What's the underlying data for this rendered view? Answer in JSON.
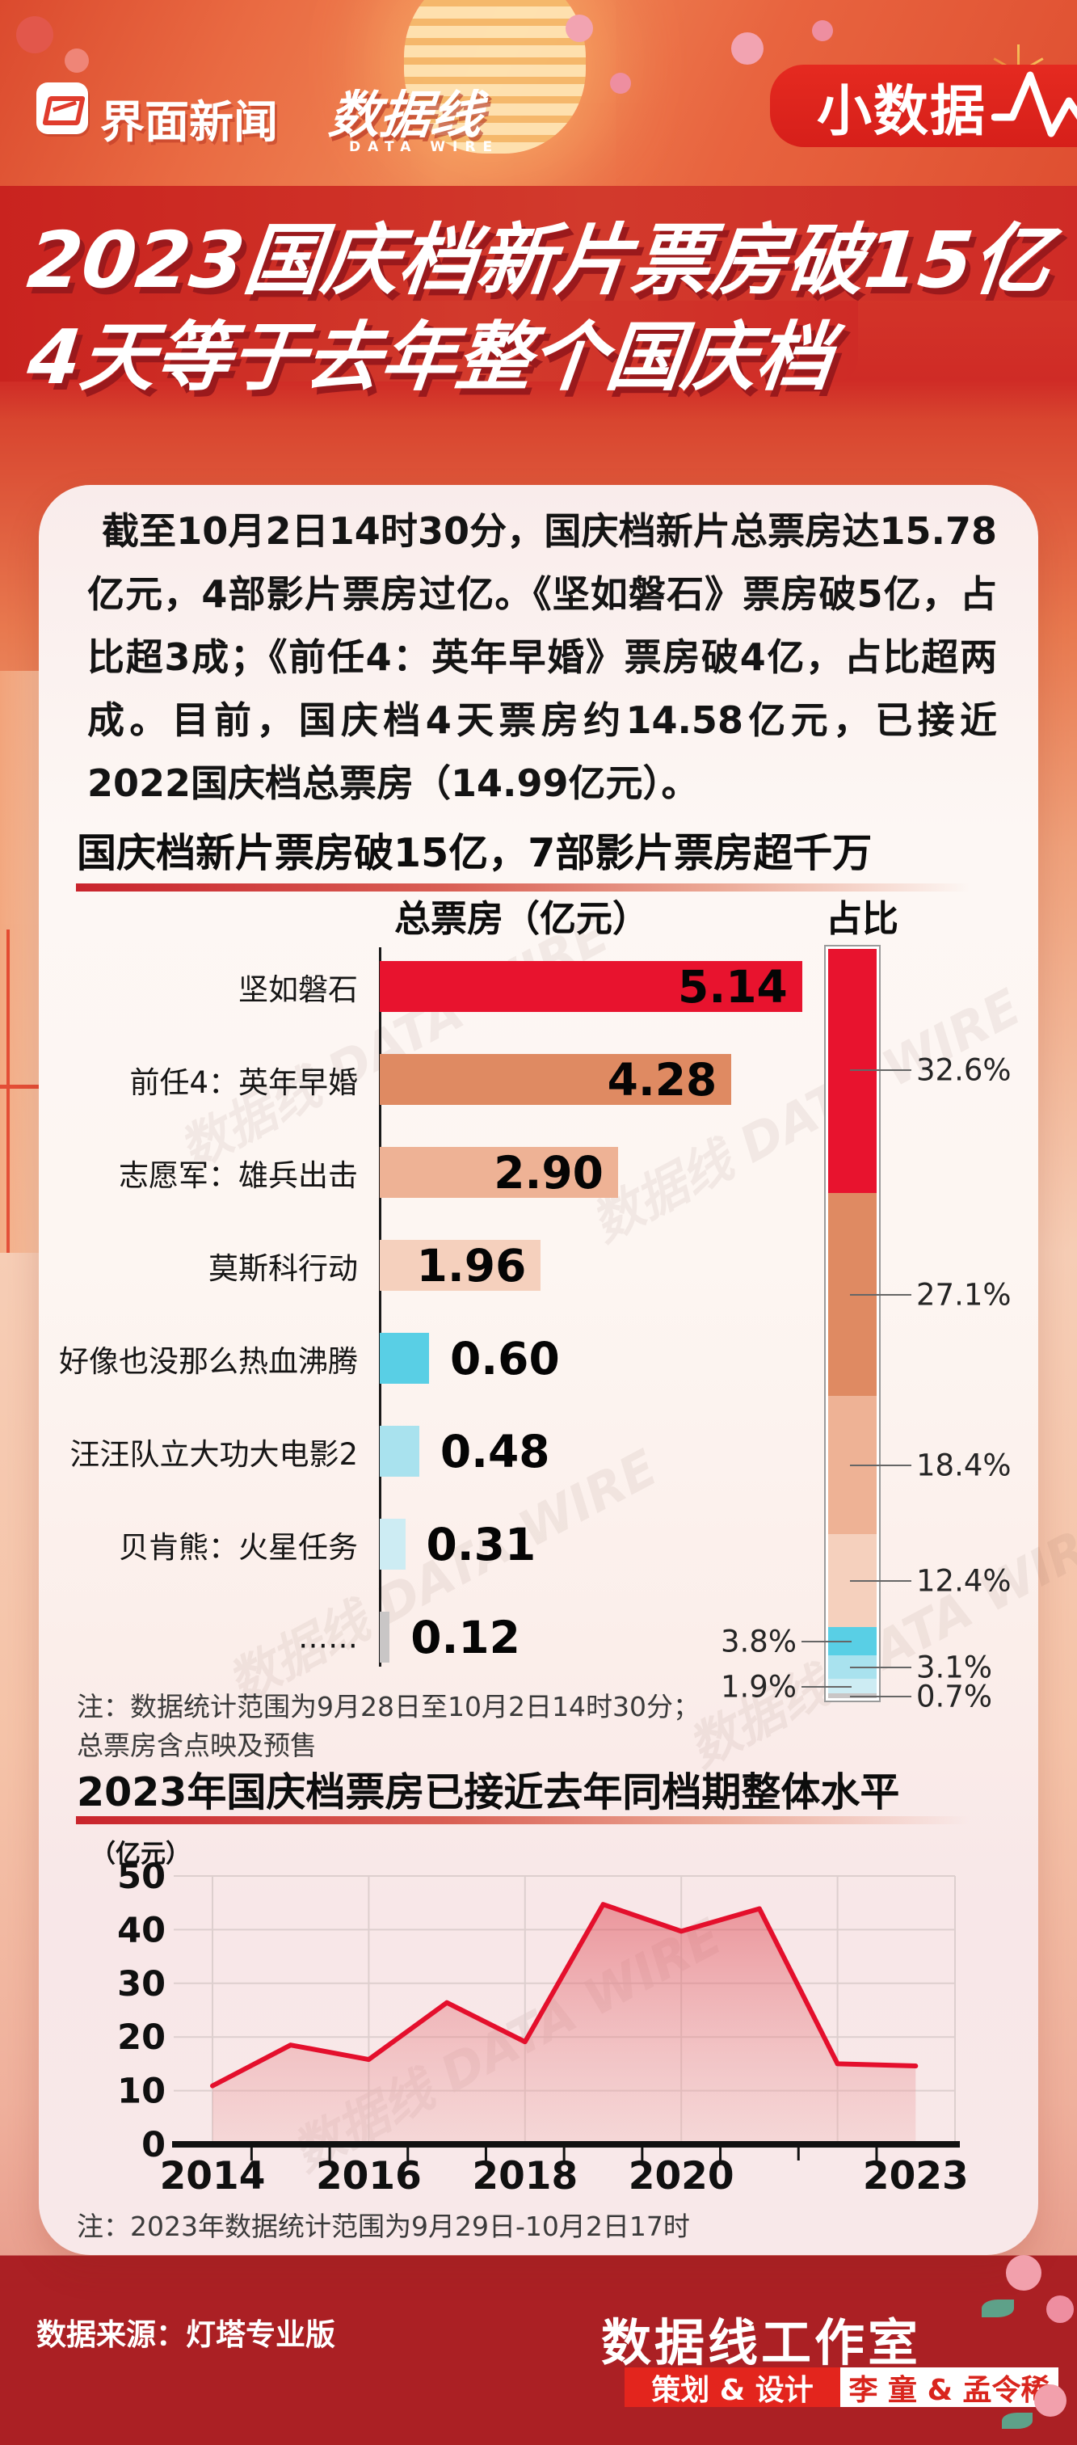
{
  "header": {
    "brand1": "界面新闻",
    "brand2": "数据线",
    "brand2_sub": "DATA WIRE",
    "badge": "小数据"
  },
  "title": {
    "line1": "2023国庆档新片票房破15亿",
    "line2": "4天等于去年整个国庆档"
  },
  "intro": "截至10月2日14时30分，国庆档新片总票房达15.78亿元，4部影片票房过亿。《坚如磐石》票房破5亿，占比超3成；《前任4：英年早婚》票房破4亿，占比超两成。目前，国庆档4天票房约14.58亿元，已接近2022国庆档总票房（14.99亿元）。",
  "footer": {
    "source": "数据来源：灯塔专业版",
    "studio": "数据线工作室",
    "credit_label": "策划 & 设计",
    "credit_names": "李 童 & 孟令稀"
  },
  "chart_data": [
    {
      "type": "bar",
      "title": "国庆档新片票房破15亿，7部影片票房超千万",
      "value_header": "总票房（亿元）",
      "share_header": "占比",
      "categories": [
        "坚如磐石",
        "前任4：英年早婚",
        "志愿军：雄兵出击",
        "莫斯科行动",
        "好像也没那么热血沸腾",
        "汪汪队立大功大电影2",
        "贝肯熊：火星任务",
        "……"
      ],
      "values": [
        5.14,
        4.28,
        2.9,
        1.96,
        0.6,
        0.48,
        0.31,
        0.12
      ],
      "value_labels": [
        "5.14",
        "4.28",
        "2.90",
        "1.96",
        "0.60",
        "0.48",
        "0.31",
        "0.12"
      ],
      "shares": [
        32.6,
        27.1,
        18.4,
        12.4,
        3.8,
        3.1,
        1.9,
        0.7
      ],
      "share_label_side": [
        "right",
        "right",
        "right",
        "right",
        "left",
        "right",
        "left",
        "right"
      ],
      "colors": [
        "#e8132e",
        "#df8a62",
        "#eeb295",
        "#f5d0bd",
        "#59cfe5",
        "#a9e2ee",
        "#cdecf3",
        "#c9c6c6"
      ],
      "xlim": [
        0,
        5.14
      ],
      "note_lines": [
        "注：数据统计范围为9月28日至10月2日14时30分；",
        "总票房含点映及预售"
      ]
    },
    {
      "type": "area",
      "title": "2023年国庆档票房已接近去年同档期整体水平",
      "unit_label": "（亿元）",
      "x": [
        2014,
        2015,
        2016,
        2017,
        2018,
        2019,
        2020,
        2021,
        2022,
        2023
      ],
      "values": [
        10.9,
        18.5,
        15.8,
        26.4,
        19.1,
        44.7,
        39.7,
        43.9,
        15.0,
        14.6
      ],
      "ylim": [
        0,
        50
      ],
      "yticks": [
        0,
        10,
        20,
        30,
        40,
        50
      ],
      "xtick_labels": [
        "2014",
        "2016",
        "2018",
        "2020",
        "2023"
      ],
      "xtick_years": [
        2014,
        2016,
        2018,
        2020,
        2023
      ],
      "line_color": "#e40f2c",
      "grid": "on",
      "note": "注：2023年数据统计范围为9月29日-10月2日17时"
    }
  ]
}
